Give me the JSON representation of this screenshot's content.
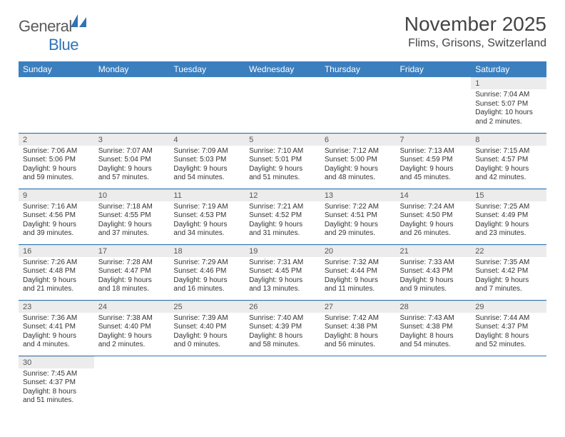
{
  "brand": {
    "part1": "General",
    "part2": "Blue"
  },
  "title": "November 2025",
  "location": "Flims, Grisons, Switzerland",
  "colors": {
    "header_bg": "#3b7fbf",
    "header_text": "#ffffff",
    "daynum_bg": "#ececec",
    "week_divider": "#2f74b5",
    "brand_gray": "#5b5b5b",
    "brand_blue": "#2f74b5"
  },
  "day_headers": [
    "Sunday",
    "Monday",
    "Tuesday",
    "Wednesday",
    "Thursday",
    "Friday",
    "Saturday"
  ],
  "weeks": [
    [
      {
        "n": "",
        "sr": "",
        "ss": "",
        "dl": ""
      },
      {
        "n": "",
        "sr": "",
        "ss": "",
        "dl": ""
      },
      {
        "n": "",
        "sr": "",
        "ss": "",
        "dl": ""
      },
      {
        "n": "",
        "sr": "",
        "ss": "",
        "dl": ""
      },
      {
        "n": "",
        "sr": "",
        "ss": "",
        "dl": ""
      },
      {
        "n": "",
        "sr": "",
        "ss": "",
        "dl": ""
      },
      {
        "n": "1",
        "sr": "Sunrise: 7:04 AM",
        "ss": "Sunset: 5:07 PM",
        "dl": "Daylight: 10 hours and 2 minutes."
      }
    ],
    [
      {
        "n": "2",
        "sr": "Sunrise: 7:06 AM",
        "ss": "Sunset: 5:06 PM",
        "dl": "Daylight: 9 hours and 59 minutes."
      },
      {
        "n": "3",
        "sr": "Sunrise: 7:07 AM",
        "ss": "Sunset: 5:04 PM",
        "dl": "Daylight: 9 hours and 57 minutes."
      },
      {
        "n": "4",
        "sr": "Sunrise: 7:09 AM",
        "ss": "Sunset: 5:03 PM",
        "dl": "Daylight: 9 hours and 54 minutes."
      },
      {
        "n": "5",
        "sr": "Sunrise: 7:10 AM",
        "ss": "Sunset: 5:01 PM",
        "dl": "Daylight: 9 hours and 51 minutes."
      },
      {
        "n": "6",
        "sr": "Sunrise: 7:12 AM",
        "ss": "Sunset: 5:00 PM",
        "dl": "Daylight: 9 hours and 48 minutes."
      },
      {
        "n": "7",
        "sr": "Sunrise: 7:13 AM",
        "ss": "Sunset: 4:59 PM",
        "dl": "Daylight: 9 hours and 45 minutes."
      },
      {
        "n": "8",
        "sr": "Sunrise: 7:15 AM",
        "ss": "Sunset: 4:57 PM",
        "dl": "Daylight: 9 hours and 42 minutes."
      }
    ],
    [
      {
        "n": "9",
        "sr": "Sunrise: 7:16 AM",
        "ss": "Sunset: 4:56 PM",
        "dl": "Daylight: 9 hours and 39 minutes."
      },
      {
        "n": "10",
        "sr": "Sunrise: 7:18 AM",
        "ss": "Sunset: 4:55 PM",
        "dl": "Daylight: 9 hours and 37 minutes."
      },
      {
        "n": "11",
        "sr": "Sunrise: 7:19 AM",
        "ss": "Sunset: 4:53 PM",
        "dl": "Daylight: 9 hours and 34 minutes."
      },
      {
        "n": "12",
        "sr": "Sunrise: 7:21 AM",
        "ss": "Sunset: 4:52 PM",
        "dl": "Daylight: 9 hours and 31 minutes."
      },
      {
        "n": "13",
        "sr": "Sunrise: 7:22 AM",
        "ss": "Sunset: 4:51 PM",
        "dl": "Daylight: 9 hours and 29 minutes."
      },
      {
        "n": "14",
        "sr": "Sunrise: 7:24 AM",
        "ss": "Sunset: 4:50 PM",
        "dl": "Daylight: 9 hours and 26 minutes."
      },
      {
        "n": "15",
        "sr": "Sunrise: 7:25 AM",
        "ss": "Sunset: 4:49 PM",
        "dl": "Daylight: 9 hours and 23 minutes."
      }
    ],
    [
      {
        "n": "16",
        "sr": "Sunrise: 7:26 AM",
        "ss": "Sunset: 4:48 PM",
        "dl": "Daylight: 9 hours and 21 minutes."
      },
      {
        "n": "17",
        "sr": "Sunrise: 7:28 AM",
        "ss": "Sunset: 4:47 PM",
        "dl": "Daylight: 9 hours and 18 minutes."
      },
      {
        "n": "18",
        "sr": "Sunrise: 7:29 AM",
        "ss": "Sunset: 4:46 PM",
        "dl": "Daylight: 9 hours and 16 minutes."
      },
      {
        "n": "19",
        "sr": "Sunrise: 7:31 AM",
        "ss": "Sunset: 4:45 PM",
        "dl": "Daylight: 9 hours and 13 minutes."
      },
      {
        "n": "20",
        "sr": "Sunrise: 7:32 AM",
        "ss": "Sunset: 4:44 PM",
        "dl": "Daylight: 9 hours and 11 minutes."
      },
      {
        "n": "21",
        "sr": "Sunrise: 7:33 AM",
        "ss": "Sunset: 4:43 PM",
        "dl": "Daylight: 9 hours and 9 minutes."
      },
      {
        "n": "22",
        "sr": "Sunrise: 7:35 AM",
        "ss": "Sunset: 4:42 PM",
        "dl": "Daylight: 9 hours and 7 minutes."
      }
    ],
    [
      {
        "n": "23",
        "sr": "Sunrise: 7:36 AM",
        "ss": "Sunset: 4:41 PM",
        "dl": "Daylight: 9 hours and 4 minutes."
      },
      {
        "n": "24",
        "sr": "Sunrise: 7:38 AM",
        "ss": "Sunset: 4:40 PM",
        "dl": "Daylight: 9 hours and 2 minutes."
      },
      {
        "n": "25",
        "sr": "Sunrise: 7:39 AM",
        "ss": "Sunset: 4:40 PM",
        "dl": "Daylight: 9 hours and 0 minutes."
      },
      {
        "n": "26",
        "sr": "Sunrise: 7:40 AM",
        "ss": "Sunset: 4:39 PM",
        "dl": "Daylight: 8 hours and 58 minutes."
      },
      {
        "n": "27",
        "sr": "Sunrise: 7:42 AM",
        "ss": "Sunset: 4:38 PM",
        "dl": "Daylight: 8 hours and 56 minutes."
      },
      {
        "n": "28",
        "sr": "Sunrise: 7:43 AM",
        "ss": "Sunset: 4:38 PM",
        "dl": "Daylight: 8 hours and 54 minutes."
      },
      {
        "n": "29",
        "sr": "Sunrise: 7:44 AM",
        "ss": "Sunset: 4:37 PM",
        "dl": "Daylight: 8 hours and 52 minutes."
      }
    ],
    [
      {
        "n": "30",
        "sr": "Sunrise: 7:45 AM",
        "ss": "Sunset: 4:37 PM",
        "dl": "Daylight: 8 hours and 51 minutes."
      },
      {
        "n": "",
        "sr": "",
        "ss": "",
        "dl": ""
      },
      {
        "n": "",
        "sr": "",
        "ss": "",
        "dl": ""
      },
      {
        "n": "",
        "sr": "",
        "ss": "",
        "dl": ""
      },
      {
        "n": "",
        "sr": "",
        "ss": "",
        "dl": ""
      },
      {
        "n": "",
        "sr": "",
        "ss": "",
        "dl": ""
      },
      {
        "n": "",
        "sr": "",
        "ss": "",
        "dl": ""
      }
    ]
  ]
}
